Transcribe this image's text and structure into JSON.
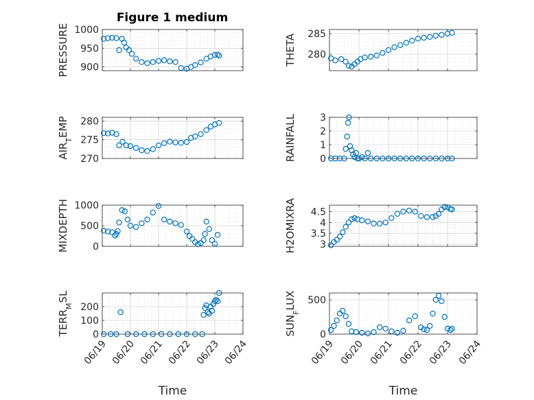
{
  "figure_title": "Figure 1 medium",
  "chart_data": [
    {
      "id": "pressure",
      "type": "scatter",
      "title": "Figure 1 medium",
      "ylabel": "PRESSURE",
      "xlabel": "",
      "ylim": [
        890,
        1000
      ],
      "yticks": [
        900,
        950,
        1000
      ],
      "xlim": [
        0,
        5
      ],
      "xtick_labels": [
        "06/19",
        "06/20",
        "06/21",
        "06/22",
        "06/23",
        "06/24"
      ],
      "grid": true,
      "x": [
        0.05,
        0.2,
        0.35,
        0.5,
        0.6,
        0.7,
        0.78,
        0.85,
        0.95,
        1.05,
        1.2,
        1.4,
        1.6,
        1.8,
        2.0,
        2.2,
        2.4,
        2.6,
        2.8,
        3.0,
        3.15,
        3.3,
        3.5,
        3.7,
        3.85,
        4.0,
        4.1,
        4.15
      ],
      "y": [
        975,
        977,
        978,
        977,
        945,
        975,
        965,
        952,
        945,
        935,
        922,
        913,
        910,
        913,
        916,
        918,
        915,
        913,
        897,
        895,
        900,
        905,
        912,
        922,
        928,
        932,
        933,
        930
      ]
    },
    {
      "id": "theta",
      "type": "scatter",
      "ylabel": "THETA",
      "xlabel": "",
      "ylim": [
        276,
        286
      ],
      "yticks": [
        280,
        285
      ],
      "xlim": [
        0,
        5
      ],
      "xtick_labels": [
        "06/19",
        "06/20",
        "06/21",
        "06/22",
        "06/23",
        "06/24"
      ],
      "grid": true,
      "x": [
        0.05,
        0.2,
        0.4,
        0.55,
        0.65,
        0.75,
        0.85,
        0.95,
        1.05,
        1.2,
        1.4,
        1.6,
        1.8,
        2.0,
        2.2,
        2.4,
        2.6,
        2.8,
        3.0,
        3.2,
        3.4,
        3.6,
        3.8,
        4.0,
        4.15
      ],
      "y": [
        279,
        278.5,
        278.8,
        278.2,
        277.2,
        277,
        277.6,
        278.2,
        278.8,
        279.2,
        279.4,
        279.7,
        280.3,
        281,
        281.7,
        282.2,
        282.8,
        283.3,
        283.8,
        284,
        284.2,
        284.5,
        284.7,
        285,
        285.2
      ]
    },
    {
      "id": "airtemp",
      "type": "scatter",
      "ylabel": "AIR_TEMP",
      "xlabel": "",
      "ylim": [
        270,
        281
      ],
      "yticks": [
        270,
        275,
        280
      ],
      "xlim": [
        0,
        5
      ],
      "xtick_labels": [
        "06/19",
        "06/20",
        "06/21",
        "06/22",
        "06/23",
        "06/24"
      ],
      "grid": true,
      "x": [
        0.05,
        0.2,
        0.35,
        0.5,
        0.6,
        0.72,
        0.85,
        1.0,
        1.2,
        1.4,
        1.6,
        1.8,
        2.0,
        2.2,
        2.4,
        2.6,
        2.8,
        3.0,
        3.15,
        3.3,
        3.5,
        3.7,
        3.85,
        4.0,
        4.15
      ],
      "y": [
        276.8,
        276.7,
        276.9,
        276.5,
        273.5,
        274.5,
        273.5,
        273.3,
        272.8,
        272.2,
        272,
        272.5,
        273.5,
        274.1,
        274.5,
        274.3,
        274.2,
        274.4,
        275.5,
        275.9,
        276.5,
        277.6,
        278.5,
        279.1,
        279.5
      ]
    },
    {
      "id": "rainfall",
      "type": "scatter",
      "ylabel": "RAINFALL",
      "xlabel": "",
      "ylim": [
        0,
        3
      ],
      "yticks": [
        0,
        1,
        2,
        3
      ],
      "xlim": [
        0,
        5
      ],
      "xtick_labels": [
        "06/19",
        "06/20",
        "06/21",
        "06/22",
        "06/23",
        "06/24"
      ],
      "grid": true,
      "x": [
        0.05,
        0.2,
        0.35,
        0.5,
        0.55,
        0.6,
        0.63,
        0.66,
        0.7,
        0.75,
        0.8,
        0.85,
        0.9,
        0.95,
        1.0,
        1.1,
        1.2,
        1.3,
        1.4,
        1.6,
        1.8,
        2.0,
        2.2,
        2.4,
        2.6,
        2.8,
        3.0,
        3.2,
        3.4,
        3.6,
        3.8,
        4.0,
        4.15
      ],
      "y": [
        0,
        0,
        0,
        0,
        0.7,
        1.6,
        2.6,
        3,
        0.9,
        0.6,
        0.3,
        0.1,
        0.4,
        0,
        0,
        0.1,
        0,
        0.4,
        0,
        0,
        0,
        0,
        0,
        0,
        0,
        0,
        0,
        0,
        0,
        0,
        0,
        0,
        0
      ]
    },
    {
      "id": "mixdepth",
      "type": "scatter",
      "ylabel": "MIXDEPTH",
      "xlabel": "",
      "ylim": [
        0,
        1000
      ],
      "yticks": [
        0,
        500,
        1000
      ],
      "xlim": [
        0,
        5
      ],
      "xtick_labels": [
        "06/19",
        "06/20",
        "06/21",
        "06/22",
        "06/23",
        "06/24"
      ],
      "grid": true,
      "x": [
        0.05,
        0.2,
        0.35,
        0.45,
        0.5,
        0.55,
        0.6,
        0.7,
        0.8,
        0.9,
        1.0,
        1.2,
        1.4,
        1.6,
        1.8,
        2.0,
        2.2,
        2.4,
        2.6,
        2.8,
        3.0,
        3.1,
        3.2,
        3.3,
        3.4,
        3.5,
        3.6,
        3.65,
        3.7,
        3.8,
        3.9,
        4.0,
        4.1
      ],
      "y": [
        380,
        360,
        340,
        260,
        300,
        370,
        580,
        880,
        850,
        650,
        500,
        470,
        560,
        650,
        820,
        980,
        650,
        600,
        560,
        520,
        360,
        250,
        180,
        100,
        50,
        80,
        150,
        300,
        600,
        420,
        150,
        60,
        280
      ]
    },
    {
      "id": "h2omixra",
      "type": "scatter",
      "ylabel": "H2OMIXRA",
      "xlabel": "",
      "ylim": [
        2.9,
        4.8
      ],
      "yticks": [
        3,
        3.5,
        4,
        4.5
      ],
      "xlim": [
        0,
        5
      ],
      "xtick_labels": [
        "06/19",
        "06/20",
        "06/21",
        "06/22",
        "06/23",
        "06/24"
      ],
      "grid": true,
      "x": [
        0.05,
        0.15,
        0.25,
        0.35,
        0.45,
        0.55,
        0.65,
        0.75,
        0.85,
        0.95,
        1.1,
        1.3,
        1.5,
        1.7,
        1.9,
        2.1,
        2.3,
        2.5,
        2.7,
        2.9,
        3.1,
        3.3,
        3.5,
        3.6,
        3.7,
        3.8,
        3.9,
        4.0,
        4.1,
        4.15
      ],
      "y": [
        2.95,
        3.1,
        3.2,
        3.35,
        3.55,
        3.8,
        4.0,
        4.15,
        4.2,
        4.15,
        4.1,
        4.05,
        3.95,
        3.95,
        4.0,
        4.2,
        4.4,
        4.5,
        4.55,
        4.5,
        4.3,
        4.25,
        4.25,
        4.3,
        4.4,
        4.6,
        4.72,
        4.7,
        4.62,
        4.6
      ]
    },
    {
      "id": "terrmsl",
      "type": "scatter",
      "ylabel": "TERR_MSL",
      "xlabel": "Time",
      "ylim": [
        0,
        300
      ],
      "yticks": [
        0,
        100,
        200
      ],
      "xlim": [
        0,
        5
      ],
      "xtick_labels": [
        "06/19",
        "06/20",
        "06/21",
        "06/22",
        "06/23",
        "06/24"
      ],
      "grid": true,
      "x": [
        0.05,
        0.3,
        0.5,
        0.65,
        0.9,
        1.2,
        1.5,
        1.8,
        2.1,
        2.4,
        2.7,
        3.0,
        3.3,
        3.55,
        3.6,
        3.65,
        3.7,
        3.75,
        3.8,
        3.85,
        3.9,
        3.95,
        4.0,
        4.05,
        4.1,
        4.15
      ],
      "y": [
        0,
        0,
        0,
        160,
        0,
        0,
        0,
        0,
        0,
        0,
        0,
        0,
        0,
        0,
        140,
        190,
        210,
        160,
        150,
        200,
        170,
        220,
        240,
        250,
        240,
        300
      ]
    },
    {
      "id": "sunflux",
      "type": "scatter",
      "ylabel": "SUN_FLUX",
      "xlabel": "Time",
      "ylim": [
        0,
        600
      ],
      "yticks": [
        0,
        500
      ],
      "xlim": [
        0,
        5
      ],
      "xtick_labels": [
        "06/19",
        "06/20",
        "06/21",
        "06/22",
        "06/23",
        "06/24"
      ],
      "grid": true,
      "x": [
        0.05,
        0.15,
        0.25,
        0.35,
        0.45,
        0.55,
        0.65,
        0.75,
        0.9,
        1.1,
        1.3,
        1.5,
        1.7,
        1.9,
        2.1,
        2.3,
        2.5,
        2.7,
        2.9,
        3.1,
        3.2,
        3.3,
        3.4,
        3.5,
        3.6,
        3.7,
        3.8,
        3.9,
        4.0,
        4.1,
        4.15
      ],
      "y": [
        60,
        120,
        200,
        300,
        340,
        260,
        150,
        40,
        30,
        20,
        10,
        30,
        100,
        80,
        40,
        20,
        50,
        200,
        260,
        100,
        70,
        60,
        120,
        300,
        500,
        560,
        480,
        250,
        80,
        60,
        80
      ]
    }
  ]
}
